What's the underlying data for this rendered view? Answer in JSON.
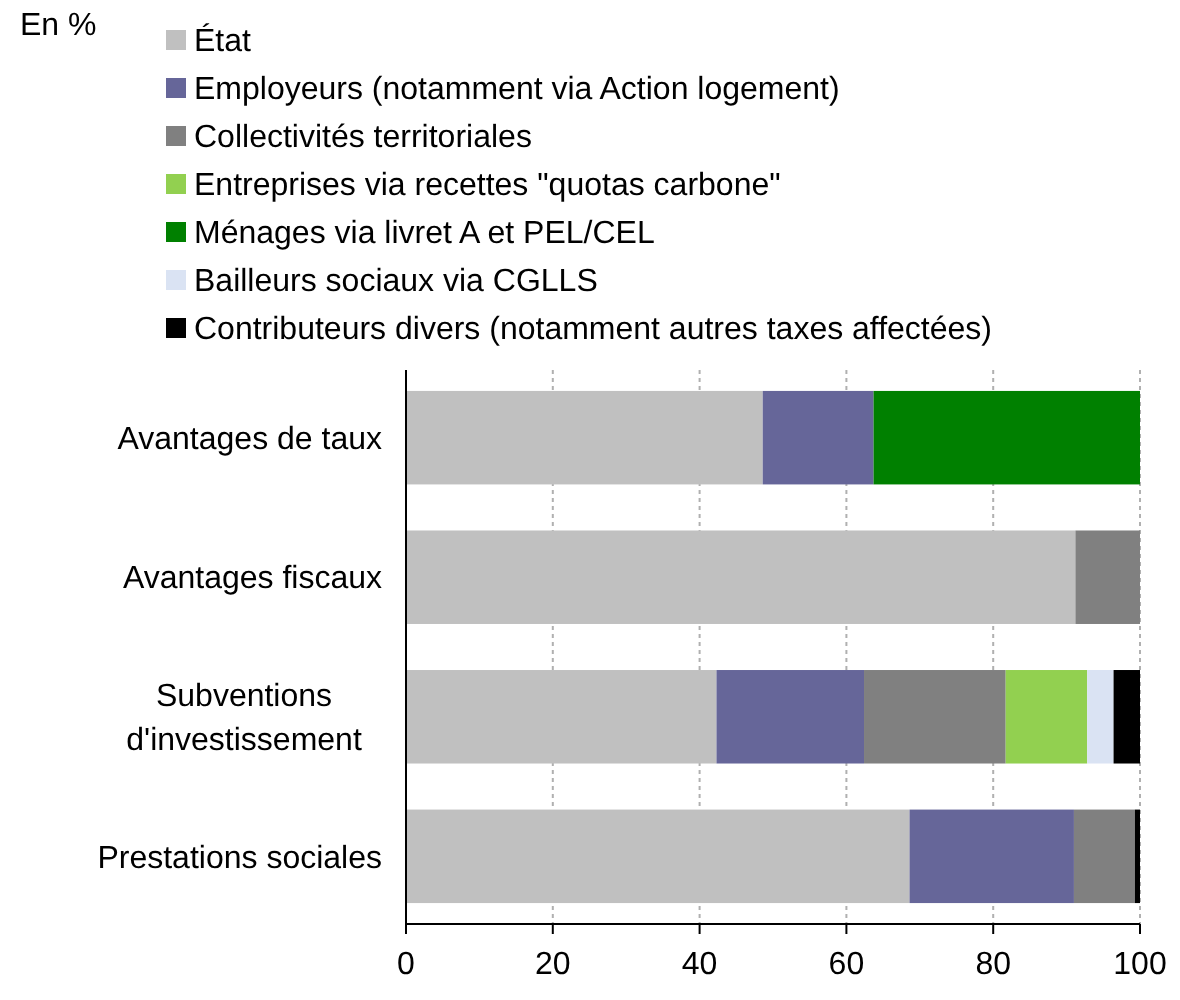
{
  "chart_data": {
    "type": "bar",
    "orientation": "horizontal",
    "stacked": true,
    "title": "En %",
    "categories": [
      "Avantages de taux",
      "Avantages fiscaux",
      "Subventions d'investissement",
      "Prestations sociales"
    ],
    "series": [
      {
        "name": "État",
        "color": "#c0c0c0",
        "values": [
          48.6,
          91.2,
          42.3,
          68.6
        ]
      },
      {
        "name": "Employeurs (notamment via Action logement)",
        "color": "#666699",
        "values": [
          15.1,
          null,
          20.1,
          22.4
        ]
      },
      {
        "name": "Collectivités territoriales",
        "color": "#808080",
        "values": [
          null,
          8.8,
          19.3,
          8.3
        ]
      },
      {
        "name": "Entreprises via recettes \"quotas carbone\"",
        "color": "#92d050",
        "values": [
          null,
          null,
          11.1,
          null
        ]
      },
      {
        "name": "Ménages via livret A et PEL/CEL",
        "color": "#008000",
        "values": [
          36.3,
          null,
          null,
          null
        ]
      },
      {
        "name": "Bailleurs sociaux via CGLLS",
        "color": "#dae3f3",
        "values": [
          null,
          null,
          3.6,
          null
        ]
      },
      {
        "name": "Contributeurs divers (notamment autres taxes affectées)",
        "color": "#000000",
        "values": [
          null,
          null,
          3.6,
          0.7
        ]
      }
    ],
    "xlim": [
      0,
      100
    ],
    "xticks": [
      0,
      20,
      40,
      60,
      80,
      100
    ],
    "grid": "x",
    "legend": "top"
  }
}
